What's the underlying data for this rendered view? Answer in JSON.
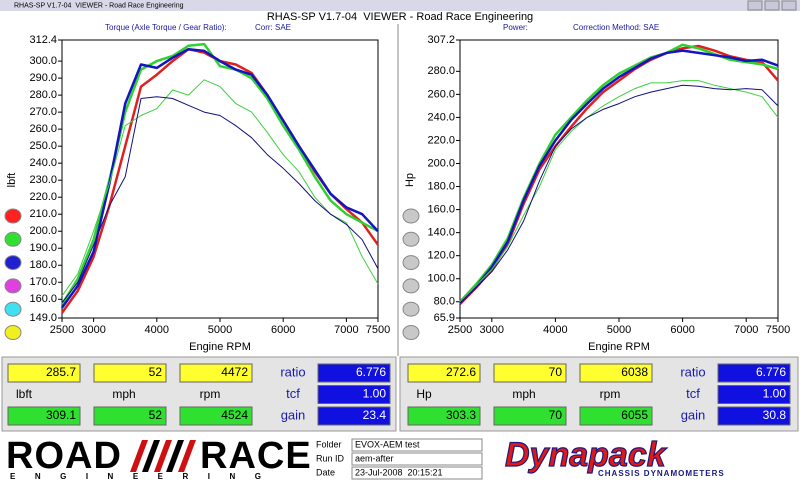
{
  "window_title": "RHAS-SP V1.7-04  VIEWER - Road Race Engineering",
  "app_title": "RHAS-SP V1.7-04  VIEWER - Road Race Engineering",
  "chart_data": [
    {
      "type": "line",
      "title": "Torque (Axle Torque / Gear Ratio):",
      "subtitle": "Corr: SAE",
      "x_label": "Engine RPM",
      "y_label": "lbft",
      "xlim": [
        2500,
        7500
      ],
      "xticks": [
        2500,
        3000,
        4000,
        5000,
        6000,
        7000,
        7500
      ],
      "ylim": [
        149.0,
        312.4
      ],
      "yticks": [
        {
          "value": 312.4,
          "label": "312.4"
        },
        {
          "value": 300,
          "label": "300.0"
        },
        {
          "value": 290,
          "label": "290.0"
        },
        {
          "value": 280,
          "label": "280.0"
        },
        {
          "value": 270,
          "label": "270.0"
        },
        {
          "value": 260,
          "label": "260.0"
        },
        {
          "value": 250,
          "label": "250.0"
        },
        {
          "value": 240,
          "label": "240.0"
        },
        {
          "value": 230,
          "label": "230.0"
        },
        {
          "value": 220,
          "label": "220.0"
        },
        {
          "value": 210,
          "label": "210.0"
        },
        {
          "value": 200,
          "label": "200.0"
        },
        {
          "value": 190,
          "label": "190.0"
        },
        {
          "value": 180,
          "label": "180.0"
        },
        {
          "value": 170,
          "label": "170.0"
        },
        {
          "value": 160,
          "label": "160.0"
        },
        {
          "value": 149.0,
          "label": "149.0"
        }
      ],
      "x": [
        2500,
        2750,
        3000,
        3250,
        3500,
        3750,
        4000,
        4250,
        4500,
        4750,
        5000,
        5250,
        5500,
        5750,
        6000,
        6250,
        6500,
        6750,
        7000,
        7250,
        7500
      ],
      "series": [
        {
          "color": "#e02020",
          "values": [
            152,
            165,
            185,
            215,
            250,
            285,
            292,
            300,
            307,
            305,
            300,
            298,
            293,
            280,
            265,
            250,
            235,
            222,
            213,
            205,
            192
          ]
        },
        {
          "color": "#30d030",
          "values": [
            157,
            172,
            195,
            230,
            270,
            295,
            300,
            303,
            309,
            310,
            297,
            295,
            290,
            278,
            262,
            248,
            232,
            218,
            210,
            205,
            200
          ]
        },
        {
          "color": "#1515c0",
          "values": [
            155,
            168,
            188,
            228,
            275,
            298,
            296,
            302,
            307,
            306,
            300,
            295,
            292,
            280,
            265,
            250,
            236,
            222,
            214,
            210,
            200
          ]
        },
        {
          "color": "#40d040",
          "values": [
            162,
            175,
            200,
            228,
            262,
            268,
            272,
            283,
            280,
            289,
            285,
            275,
            270,
            258,
            245,
            235,
            220,
            210,
            205,
            185,
            169
          ]
        },
        {
          "color": "#101080",
          "values": [
            158,
            170,
            192,
            215,
            232,
            278,
            279,
            278,
            274,
            270,
            268,
            262,
            255,
            245,
            237,
            228,
            218,
            210,
            204,
            195,
            178
          ]
        }
      ],
      "legend_dots": [
        "#ff2020",
        "#30e030",
        "#2020d0",
        "#e040e0",
        "#40e0f0",
        "#f0f020"
      ]
    },
    {
      "type": "line",
      "title": "Power:",
      "subtitle": "Correction Method: SAE",
      "x_label": "Engine RPM",
      "y_label": "Hp",
      "xlim": [
        2500,
        7500
      ],
      "xticks": [
        2500,
        3000,
        4000,
        5000,
        6000,
        7000,
        7500
      ],
      "ylim": [
        65.9,
        307.2
      ],
      "yticks": [
        {
          "value": 307.2,
          "label": "307.2"
        },
        {
          "value": 280,
          "label": "280.0"
        },
        {
          "value": 260,
          "label": "260.0"
        },
        {
          "value": 240,
          "label": "240.0"
        },
        {
          "value": 220,
          "label": "220.0"
        },
        {
          "value": 200,
          "label": "200.0"
        },
        {
          "value": 180,
          "label": "180.0"
        },
        {
          "value": 160,
          "label": "160.0"
        },
        {
          "value": 140,
          "label": "140.0"
        },
        {
          "value": 120,
          "label": "120.0"
        },
        {
          "value": 100,
          "label": "100.0"
        },
        {
          "value": 80,
          "label": "80.0"
        },
        {
          "value": 65.9,
          "label": "65.9"
        }
      ],
      "x": [
        2500,
        2750,
        3000,
        3250,
        3500,
        3750,
        4000,
        4250,
        4500,
        4750,
        5000,
        5250,
        5500,
        5750,
        6000,
        6250,
        6500,
        6750,
        7000,
        7250,
        7500
      ],
      "series": [
        {
          "color": "#e02020",
          "values": [
            78,
            92,
            108,
            130,
            165,
            195,
            215,
            232,
            248,
            262,
            272,
            282,
            290,
            296,
            300,
            302,
            298,
            293,
            290,
            288,
            272
          ]
        },
        {
          "color": "#30d030",
          "values": [
            80,
            95,
            112,
            135,
            170,
            200,
            225,
            240,
            255,
            268,
            278,
            285,
            292,
            296,
            303,
            300,
            295,
            290,
            288,
            286,
            282
          ]
        },
        {
          "color": "#1515c0",
          "values": [
            79,
            93,
            110,
            132,
            168,
            198,
            220,
            238,
            252,
            265,
            275,
            283,
            291,
            296,
            298,
            296,
            294,
            292,
            289,
            290,
            285
          ]
        },
        {
          "color": "#40d040",
          "values": [
            80,
            94,
            108,
            128,
            155,
            180,
            212,
            228,
            240,
            250,
            258,
            265,
            270,
            270,
            272,
            272,
            268,
            265,
            262,
            258,
            240
          ]
        },
        {
          "color": "#101080",
          "values": [
            79,
            92,
            106,
            125,
            150,
            185,
            215,
            230,
            240,
            247,
            252,
            258,
            262,
            265,
            268,
            267,
            265,
            264,
            265,
            264,
            250
          ]
        }
      ],
      "legend_dots": [
        "#c8c8c8",
        "#c8c8c8",
        "#c8c8c8",
        "#c8c8c8",
        "#c8c8c8",
        "#c8c8c8"
      ]
    }
  ],
  "readouts": [
    {
      "current": [
        "285.7",
        "52",
        "4472"
      ],
      "units": [
        "lbft",
        "mph",
        "rpm"
      ],
      "peak": [
        "309.1",
        "52",
        "4524"
      ],
      "factor_labels": [
        "ratio",
        "tcf",
        "gain"
      ],
      "factors": [
        "6.776",
        "1.00",
        "23.4"
      ]
    },
    {
      "current": [
        "272.6",
        "70",
        "6038"
      ],
      "units": [
        "Hp",
        "mph",
        "rpm"
      ],
      "peak": [
        "303.3",
        "70",
        "6055"
      ],
      "factor_labels": [
        "ratio",
        "tcf",
        "gain"
      ],
      "factors": [
        "6.776",
        "1.00",
        "30.8"
      ]
    }
  ],
  "run_info": {
    "labels": [
      "Folder",
      "Run ID",
      "Date"
    ],
    "values": [
      "EVOX-AEM test",
      "aem-after",
      "23-Jul-2008  20:15:21"
    ]
  },
  "logos": {
    "road": "ROAD",
    "race": "RACE",
    "engineering": "ENGINEERING",
    "dynapack": "Dynapack",
    "dynapack_sub": "CHASSIS DYNAMOMETERS"
  }
}
